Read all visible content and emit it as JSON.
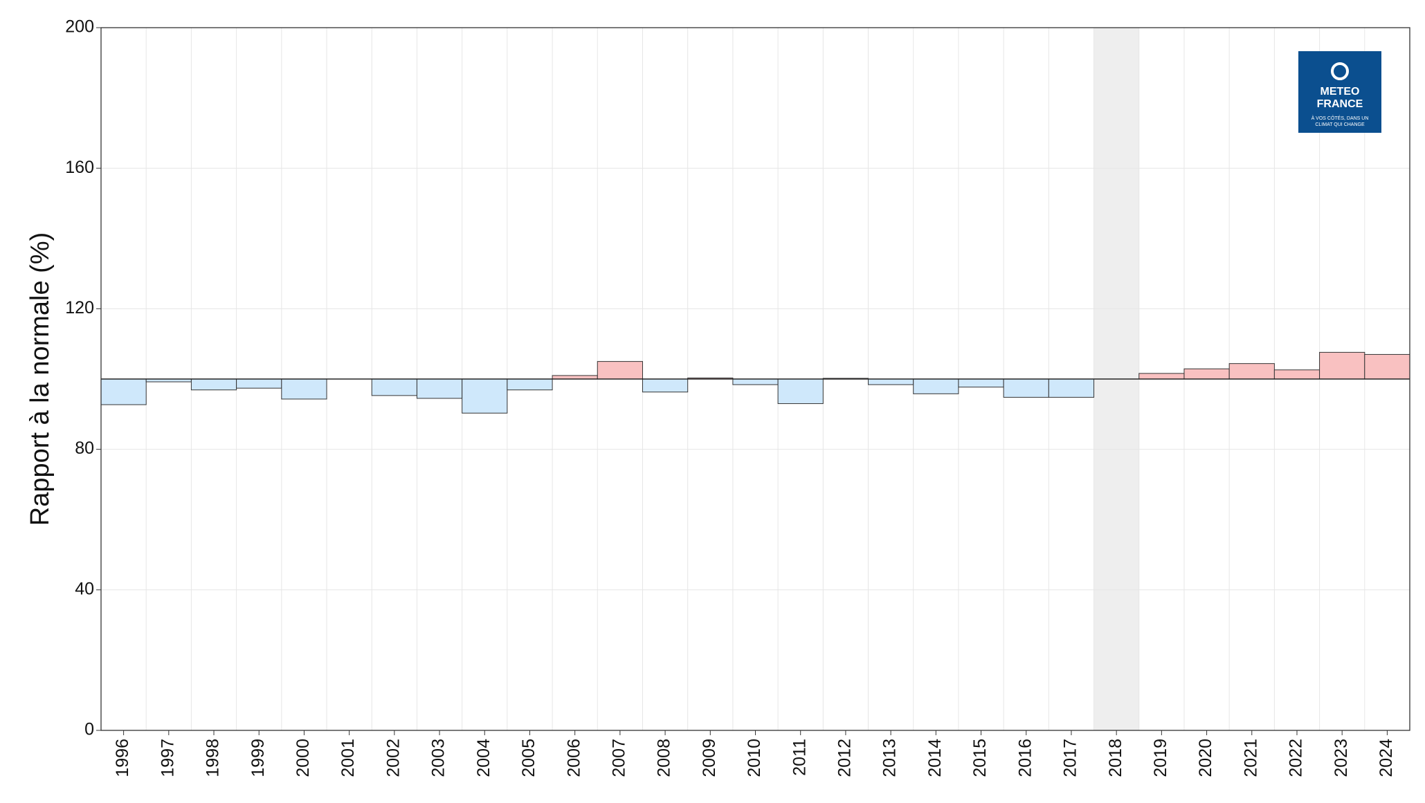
{
  "chart_data": {
    "type": "bar",
    "y_label": "Rapport à la normale (%)",
    "categories": [
      "1996",
      "1997",
      "1998",
      "1999",
      "2000",
      "2001",
      "2002",
      "2003",
      "2004",
      "2005",
      "2006",
      "2007",
      "2008",
      "2009",
      "2010",
      "2011",
      "2012",
      "2013",
      "2014",
      "2015",
      "2016",
      "2017",
      "2018",
      "2019",
      "2020",
      "2021",
      "2022",
      "2023",
      "2024"
    ],
    "values": [
      92.7,
      99.2,
      96.9,
      97.4,
      94.3,
      100,
      95.3,
      94.5,
      90.3,
      96.9,
      101.0,
      105.0,
      96.3,
      100.3,
      98.4,
      93.0,
      100.2,
      98.4,
      95.8,
      97.7,
      94.8,
      94.8,
      null,
      101.6,
      102.9,
      104.4,
      102.6,
      107.6,
      107.0
    ],
    "reference": 100,
    "above_color": "#f9c1c1",
    "below_color": "#cfe8fb",
    "missing_color": "#eeeeee",
    "ylim": [
      0,
      200
    ],
    "yticks": [
      0,
      40,
      80,
      120,
      160,
      200
    ],
    "grid": true,
    "logo": {
      "name_line1": "METEO",
      "name_line2": "FRANCE",
      "tagline_line1": "À VOS CÔTÉS, DANS UN",
      "tagline_line2": "CLIMAT QUI CHANGE"
    }
  }
}
